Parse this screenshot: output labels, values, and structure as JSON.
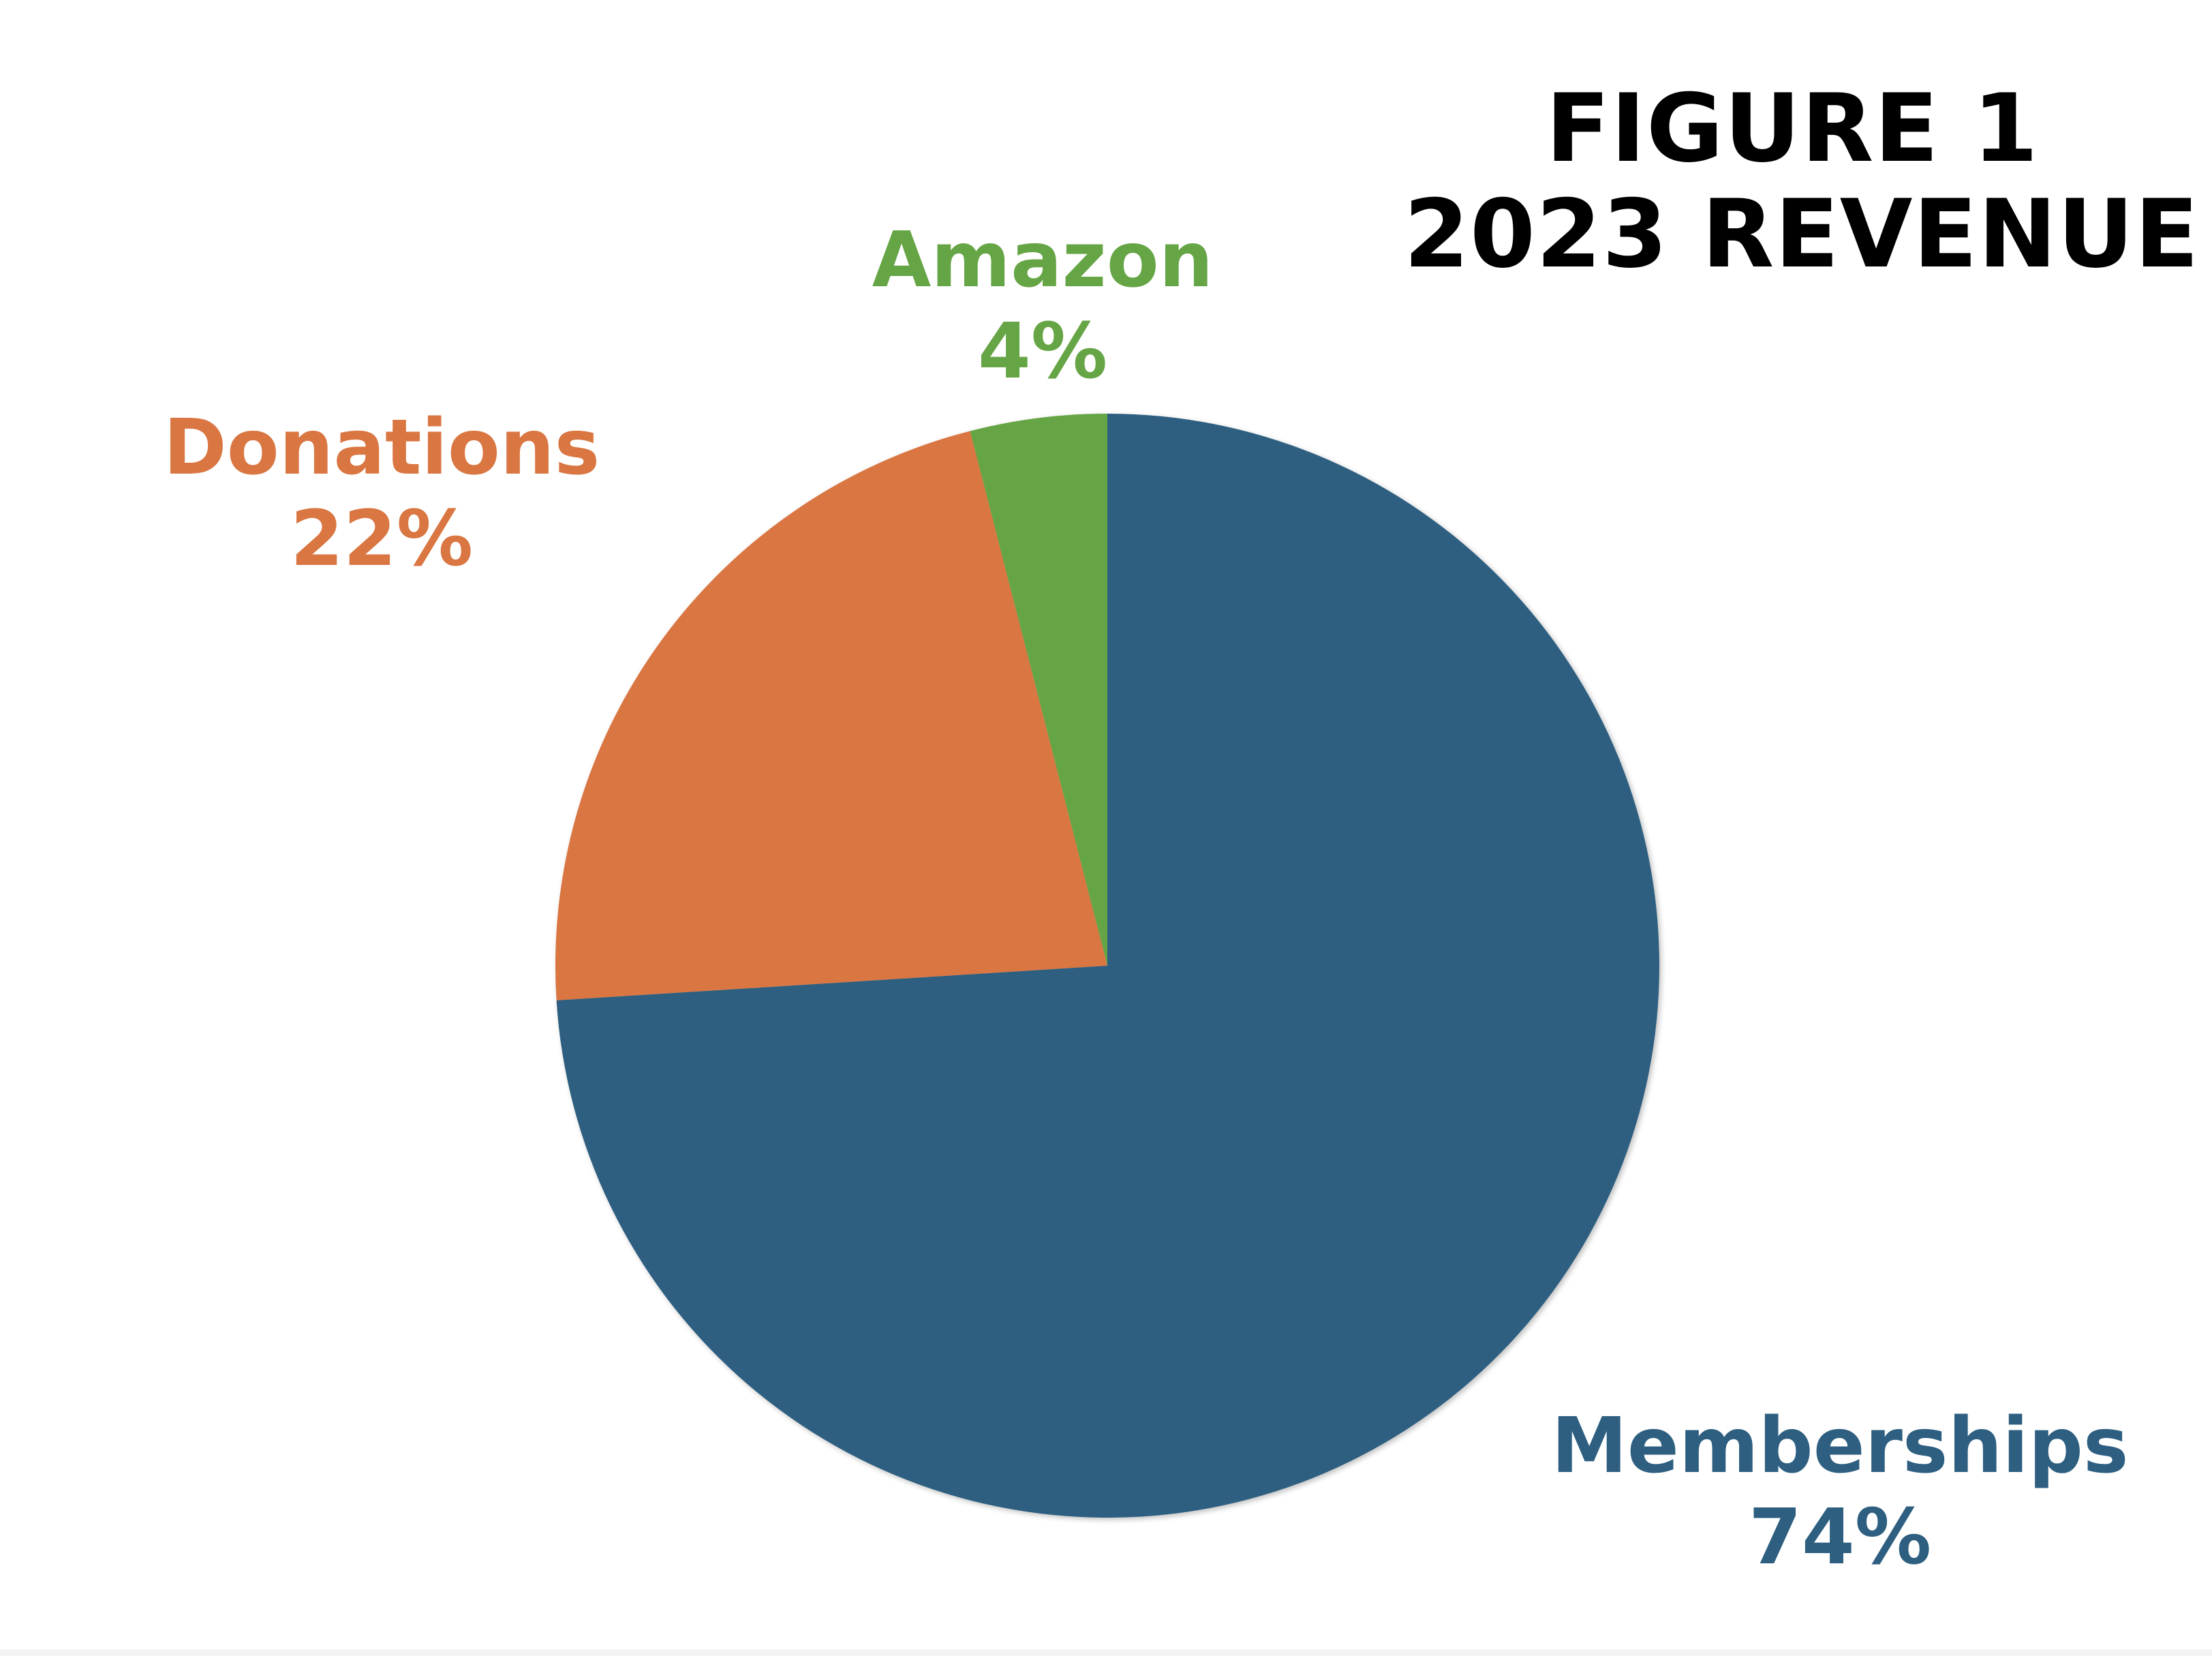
{
  "chart_data": {
    "type": "pie",
    "title": [
      "FIGURE 1",
      "2023 REVENUE"
    ],
    "slices": [
      {
        "name": "Memberships",
        "value": 74,
        "value_label": "74%",
        "color": "#2e5f80"
      },
      {
        "name": "Donations",
        "value": 22,
        "value_label": "22%",
        "color": "#d97642"
      },
      {
        "name": "Amazon",
        "value": 4,
        "value_label": "4%",
        "color": "#66a545"
      }
    ],
    "start_angle": "12 o'clock",
    "direction": "clockwise",
    "legend": "none"
  }
}
